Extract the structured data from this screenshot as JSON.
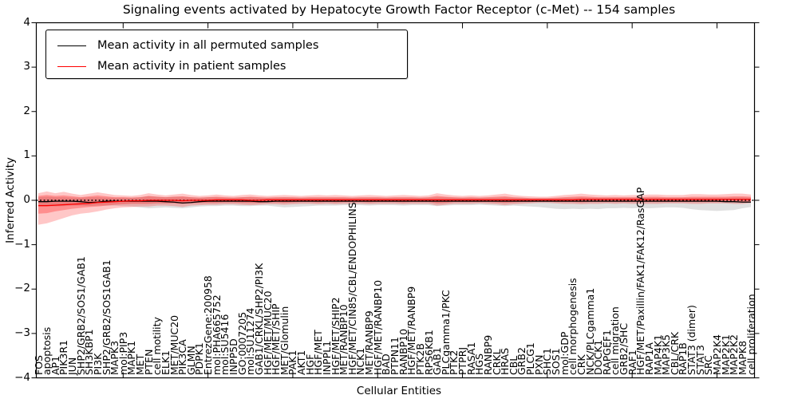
{
  "figure": {
    "title": "Signaling events activated by Hepatocyte Growth Factor Receptor (c-Met) -- 154 samples",
    "background": "#ffffff"
  },
  "legend": {
    "position": "upper left",
    "entries": [
      {
        "label": "Mean activity in all permuted samples",
        "color": "#000000"
      },
      {
        "label": "Mean activity in patient samples",
        "color": "#ff0000"
      }
    ]
  },
  "chart_data": {
    "type": "line",
    "title": "Signaling events activated by Hepatocyte Growth Factor Receptor (c-Met) -- 154 samples",
    "xlabel": "Cellular Entities",
    "ylabel": "Inferred Activity",
    "ylim": [
      -4,
      4
    ],
    "grid": false,
    "legend_position": "upper left",
    "ytick_values": [
      -4,
      -3,
      -2,
      -1,
      0,
      1,
      2,
      3,
      4
    ],
    "ytick_labels": [
      "−4",
      "−3",
      "−2",
      "−1",
      "0",
      "1",
      "2",
      "3",
      "4"
    ],
    "categories": [
      "FOS",
      "apoptosis",
      "AP1",
      "PIK3R1",
      "JUN",
      "SHP2/GRB2/SOS1/GAB1",
      "SH3KBP1",
      "PI3K",
      "SHP2/GRB2/SOS1GAB1",
      "MAPK3",
      "mol:PIP3",
      "MAPK1",
      "MET",
      "PTEN",
      "cell motility",
      "ELK1",
      "MET/MUC20",
      "PIK3CA",
      "GLMN",
      "PDPK1",
      "EntrezGene:200958",
      "mol:PHA665752",
      "mol:SU5416",
      "INPP5D",
      "GO:0007205",
      "mol:SU11274",
      "GAB1/CRKL/SHP2/PI3K",
      "HGF/MET/MUC20",
      "HGF/MET/SHIP",
      "MET/Glomulin",
      "PAK1",
      "AKT1",
      "HGF",
      "HGF/MET",
      "INPPL1",
      "HGF/MET/SHIP2",
      "MET/RANBP10",
      "HGF/MET/CIN85/CBL/ENDOPHILINS",
      "NCK1",
      "MET/RANBP9",
      "HGF/MET/RANBP10",
      "BAD",
      "PTPN11",
      "RANBP10",
      "HGF/MET/RANBP9",
      "PTK2B",
      "RPS6KB1",
      "GAB1",
      "PLCgamma1/PKC",
      "PTK2",
      "PTPRJ",
      "RASA1",
      "HGS",
      "RANBP9",
      "CRKL",
      "HRAS",
      "CBL",
      "GRB2",
      "PLCG1",
      "PXN",
      "SHC1",
      "SOS1",
      "mol:GDP",
      "cell morphogenesis",
      "CRK",
      "NCK/PLCgamma1",
      "DOCK1",
      "RAPGEF1",
      "cell migration",
      "GRB2/SHC",
      "RAF1",
      "HGF/MET/Paxillin/FAK1/FAK12/RasGAP",
      "RAP1A",
      "MAP4K1",
      "MAP3K5",
      "CBL/CRK",
      "RAP1B",
      "STAT3 (dimer)",
      "STAT3",
      "SRC",
      "MAP2K4",
      "MAP2K1",
      "MAP2K2",
      "MAPK8",
      "cell proliferation"
    ],
    "series": [
      {
        "name": "Mean activity in all permuted samples",
        "color": "#000000",
        "style": "solid",
        "values": [
          -0.03,
          -0.03,
          -0.02,
          -0.02,
          -0.02,
          -0.03,
          -0.05,
          -0.04,
          -0.02,
          -0.02,
          -0.02,
          -0.02,
          -0.02,
          -0.02,
          -0.02,
          -0.03,
          -0.04,
          -0.06,
          -0.05,
          -0.03,
          -0.02,
          -0.02,
          -0.02,
          -0.02,
          -0.02,
          -0.02,
          -0.03,
          -0.03,
          -0.02,
          -0.02,
          -0.02,
          -0.02,
          -0.02,
          -0.02,
          -0.02,
          -0.02,
          -0.02,
          -0.02,
          -0.02,
          -0.02,
          -0.02,
          -0.02,
          -0.02,
          -0.02,
          -0.02,
          -0.02,
          -0.02,
          -0.02,
          -0.02,
          -0.02,
          -0.02,
          -0.02,
          -0.02,
          -0.02,
          -0.02,
          -0.02,
          -0.02,
          -0.02,
          -0.02,
          -0.02,
          -0.02,
          -0.02,
          -0.02,
          -0.02,
          -0.02,
          -0.02,
          -0.02,
          -0.02,
          -0.02,
          -0.02,
          -0.02,
          -0.02,
          -0.02,
          -0.02,
          -0.02,
          -0.02,
          -0.02,
          -0.02,
          -0.02,
          -0.02,
          -0.02,
          -0.03,
          -0.03,
          -0.04,
          -0.04
        ]
      },
      {
        "name": "Mean activity in patient samples",
        "color": "#ff0000",
        "style": "solid",
        "values": [
          -0.12,
          -0.12,
          -0.11,
          -0.1,
          -0.09,
          -0.08,
          -0.07,
          -0.05,
          -0.04,
          -0.03,
          -0.02,
          -0.01,
          -0.01,
          0.0,
          0.0,
          0.0,
          0.0,
          -0.01,
          0.0,
          0.0,
          0.0,
          0.01,
          0.01,
          0.01,
          0.01,
          0.0,
          0.0,
          0.01,
          0.01,
          0.01,
          0.01,
          0.01,
          0.01,
          0.01,
          0.01,
          0.01,
          0.01,
          0.01,
          0.01,
          0.01,
          0.01,
          0.01,
          0.01,
          0.01,
          0.01,
          0.01,
          0.01,
          0.01,
          0.01,
          0.01,
          0.01,
          0.01,
          0.01,
          0.01,
          0.01,
          0.01,
          0.01,
          0.01,
          0.01,
          0.01,
          0.01,
          0.01,
          0.01,
          0.01,
          0.02,
          0.02,
          0.02,
          0.02,
          0.02,
          0.02,
          0.02,
          0.02,
          0.02,
          0.02,
          0.02,
          0.02,
          0.02,
          0.02,
          0.02,
          0.02,
          0.02,
          0.02,
          0.02,
          0.02,
          0.02
        ]
      }
    ],
    "bands": [
      {
        "name": "permuted-samples-std-band",
        "color": "#000000",
        "opacity": 0.12,
        "upper": [
          0.07,
          0.08,
          0.07,
          0.07,
          0.06,
          0.06,
          0.07,
          0.07,
          0.06,
          0.06,
          0.06,
          0.06,
          0.07,
          0.09,
          0.08,
          0.07,
          0.08,
          0.08,
          0.07,
          0.06,
          0.07,
          0.07,
          0.06,
          0.06,
          0.07,
          0.07,
          0.06,
          0.06,
          0.06,
          0.07,
          0.06,
          0.06,
          0.06,
          0.06,
          0.06,
          0.06,
          0.06,
          0.06,
          0.06,
          0.06,
          0.06,
          0.06,
          0.06,
          0.06,
          0.06,
          0.06,
          0.06,
          0.07,
          0.07,
          0.06,
          0.06,
          0.06,
          0.06,
          0.06,
          0.06,
          0.07,
          0.06,
          0.06,
          0.05,
          0.05,
          0.05,
          0.05,
          0.06,
          0.06,
          0.07,
          0.06,
          0.06,
          0.06,
          0.06,
          0.06,
          0.06,
          0.06,
          0.06,
          0.06,
          0.06,
          0.06,
          0.06,
          0.06,
          0.06,
          0.06,
          0.06,
          0.06,
          0.07,
          0.07,
          0.06
        ],
        "lower": [
          -0.13,
          -0.13,
          -0.14,
          -0.13,
          -0.12,
          -0.12,
          -0.13,
          -0.12,
          -0.12,
          -0.12,
          -0.13,
          -0.14,
          -0.16,
          -0.18,
          -0.17,
          -0.16,
          -0.17,
          -0.18,
          -0.16,
          -0.14,
          -0.13,
          -0.13,
          -0.12,
          -0.12,
          -0.13,
          -0.13,
          -0.12,
          -0.12,
          -0.14,
          -0.16,
          -0.15,
          -0.14,
          -0.13,
          -0.12,
          -0.12,
          -0.12,
          -0.11,
          -0.11,
          -0.11,
          -0.12,
          -0.11,
          -0.11,
          -0.11,
          -0.12,
          -0.11,
          -0.11,
          -0.11,
          -0.13,
          -0.12,
          -0.11,
          -0.11,
          -0.11,
          -0.1,
          -0.11,
          -0.12,
          -0.13,
          -0.12,
          -0.13,
          -0.14,
          -0.15,
          -0.17,
          -0.19,
          -0.2,
          -0.19,
          -0.2,
          -0.19,
          -0.2,
          -0.18,
          -0.18,
          -0.17,
          -0.18,
          -0.17,
          -0.18,
          -0.17,
          -0.16,
          -0.16,
          -0.17,
          -0.2,
          -0.22,
          -0.23,
          -0.24,
          -0.23,
          -0.22,
          -0.18,
          -0.15
        ]
      },
      {
        "name": "patient-samples-std-band-outer",
        "color": "#ff0000",
        "opacity": 0.22,
        "upper": [
          0.16,
          0.2,
          0.16,
          0.19,
          0.15,
          0.12,
          0.15,
          0.18,
          0.15,
          0.12,
          0.11,
          0.1,
          0.12,
          0.16,
          0.13,
          0.11,
          0.13,
          0.15,
          0.12,
          0.1,
          0.11,
          0.13,
          0.11,
          0.1,
          0.12,
          0.13,
          0.11,
          0.1,
          0.11,
          0.12,
          0.11,
          0.1,
          0.11,
          0.12,
          0.11,
          0.12,
          0.11,
          0.1,
          0.11,
          0.12,
          0.11,
          0.1,
          0.11,
          0.12,
          0.11,
          0.1,
          0.11,
          0.16,
          0.13,
          0.11,
          0.1,
          0.11,
          0.1,
          0.11,
          0.13,
          0.15,
          0.12,
          0.1,
          0.09,
          0.08,
          0.08,
          0.1,
          0.12,
          0.13,
          0.15,
          0.13,
          0.12,
          0.11,
          0.12,
          0.11,
          0.12,
          0.12,
          0.13,
          0.13,
          0.12,
          0.12,
          0.12,
          0.14,
          0.14,
          0.13,
          0.13,
          0.14,
          0.15,
          0.15,
          0.13
        ],
        "lower": [
          -0.55,
          -0.52,
          -0.46,
          -0.4,
          -0.34,
          -0.3,
          -0.28,
          -0.25,
          -0.21,
          -0.18,
          -0.16,
          -0.15,
          -0.14,
          -0.14,
          -0.12,
          -0.12,
          -0.13,
          -0.15,
          -0.12,
          -0.11,
          -0.1,
          -0.1,
          -0.09,
          -0.09,
          -0.1,
          -0.11,
          -0.1,
          -0.09,
          -0.09,
          -0.1,
          -0.09,
          -0.08,
          -0.08,
          -0.09,
          -0.08,
          -0.09,
          -0.08,
          -0.08,
          -0.08,
          -0.09,
          -0.08,
          -0.08,
          -0.08,
          -0.09,
          -0.08,
          -0.08,
          -0.08,
          -0.12,
          -0.1,
          -0.08,
          -0.08,
          -0.08,
          -0.07,
          -0.08,
          -0.09,
          -0.11,
          -0.09,
          -0.08,
          -0.07,
          -0.06,
          -0.06,
          -0.07,
          -0.08,
          -0.08,
          -0.09,
          -0.08,
          -0.08,
          -0.07,
          -0.08,
          -0.07,
          -0.08,
          -0.08,
          -0.08,
          -0.08,
          -0.07,
          -0.07,
          -0.07,
          -0.08,
          -0.08,
          -0.07,
          -0.07,
          -0.07,
          -0.08,
          -0.08,
          -0.06
        ]
      },
      {
        "name": "patient-samples-std-band-inner",
        "color": "#ff0000",
        "opacity": 0.28,
        "upper": [
          0.1,
          0.12,
          0.1,
          0.11,
          0.09,
          0.07,
          0.09,
          0.11,
          0.09,
          0.07,
          0.07,
          0.06,
          0.07,
          0.1,
          0.08,
          0.07,
          0.08,
          0.09,
          0.07,
          0.06,
          0.07,
          0.08,
          0.07,
          0.06,
          0.07,
          0.08,
          0.07,
          0.06,
          0.07,
          0.07,
          0.07,
          0.06,
          0.07,
          0.07,
          0.07,
          0.07,
          0.07,
          0.06,
          0.07,
          0.07,
          0.07,
          0.06,
          0.07,
          0.07,
          0.07,
          0.06,
          0.07,
          0.1,
          0.08,
          0.07,
          0.06,
          0.07,
          0.06,
          0.07,
          0.08,
          0.09,
          0.07,
          0.06,
          0.05,
          0.05,
          0.05,
          0.06,
          0.07,
          0.08,
          0.09,
          0.08,
          0.07,
          0.07,
          0.07,
          0.07,
          0.07,
          0.07,
          0.08,
          0.08,
          0.07,
          0.07,
          0.07,
          0.08,
          0.08,
          0.08,
          0.08,
          0.08,
          0.09,
          0.09,
          0.08
        ],
        "lower": [
          -0.3,
          -0.29,
          -0.25,
          -0.22,
          -0.19,
          -0.17,
          -0.15,
          -0.14,
          -0.12,
          -0.1,
          -0.09,
          -0.08,
          -0.08,
          -0.08,
          -0.07,
          -0.07,
          -0.07,
          -0.08,
          -0.07,
          -0.06,
          -0.06,
          -0.06,
          -0.05,
          -0.05,
          -0.06,
          -0.06,
          -0.06,
          -0.05,
          -0.05,
          -0.06,
          -0.05,
          -0.04,
          -0.04,
          -0.05,
          -0.04,
          -0.05,
          -0.04,
          -0.04,
          -0.04,
          -0.05,
          -0.04,
          -0.04,
          -0.04,
          -0.05,
          -0.04,
          -0.04,
          -0.04,
          -0.07,
          -0.06,
          -0.04,
          -0.04,
          -0.04,
          -0.04,
          -0.04,
          -0.05,
          -0.06,
          -0.05,
          -0.04,
          -0.04,
          -0.03,
          -0.03,
          -0.04,
          -0.04,
          -0.04,
          -0.05,
          -0.04,
          -0.04,
          -0.04,
          -0.04,
          -0.04,
          -0.04,
          -0.04,
          -0.04,
          -0.04,
          -0.04,
          -0.04,
          -0.04,
          -0.04,
          -0.04,
          -0.04,
          -0.04,
          -0.04,
          -0.04,
          -0.04,
          -0.03
        ]
      }
    ],
    "zero_reference": {
      "value": 0,
      "style": "dotted",
      "color": "#000000"
    }
  }
}
